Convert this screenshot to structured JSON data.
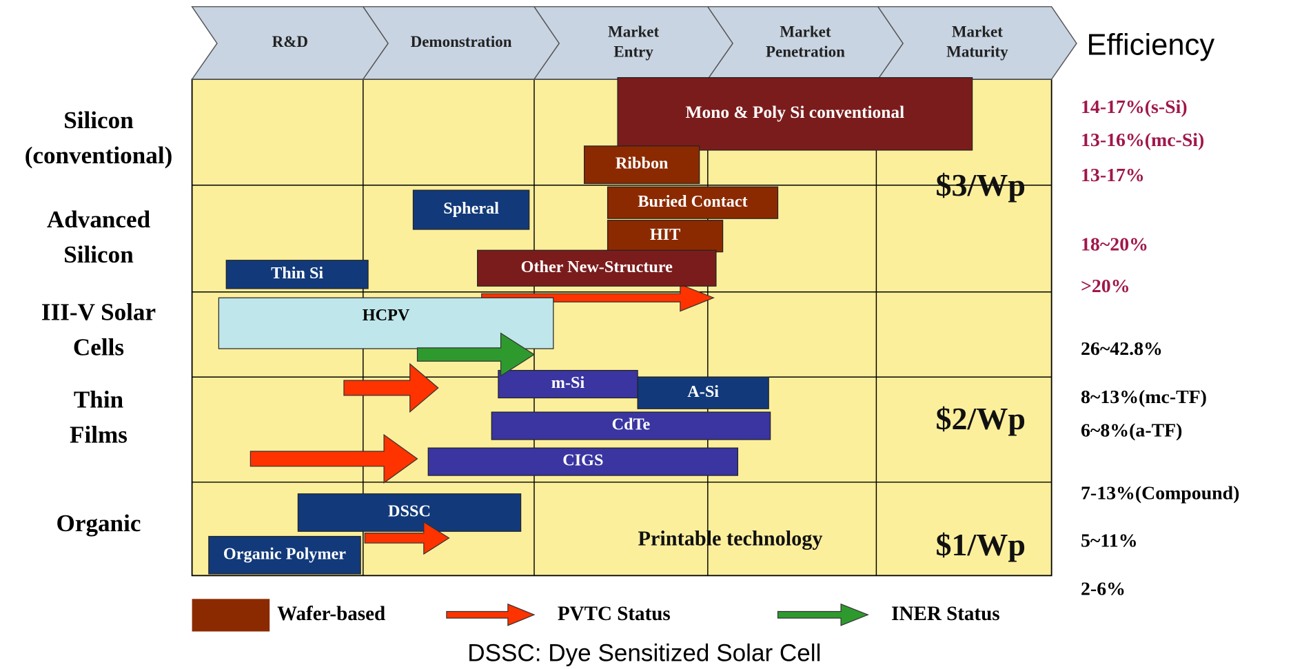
{
  "stages": [
    "R&D",
    "Demonstration",
    "Market Entry",
    "Market Penetration",
    "Market Maturity"
  ],
  "efficiency_heading": "Efficiency",
  "rows": [
    "Silicon (conventional)",
    "Advanced Silicon",
    "III-V Solar Cells",
    "Thin Films",
    "Organic"
  ],
  "bars": [
    {
      "label": "Mono & Poly Si conventional",
      "color": "#7b1c1c"
    },
    {
      "label": "Ribbon",
      "color": "#8b2a00"
    },
    {
      "label": "Buried Contact",
      "color": "#8b2a00"
    },
    {
      "label": "HIT",
      "color": "#8b2a00"
    },
    {
      "label": "Other New-Structure",
      "color": "#7b1c1c"
    },
    {
      "label": "Spheral",
      "color": "#123a7a"
    },
    {
      "label": "Thin Si",
      "color": "#123a7a"
    },
    {
      "label": "HCPV",
      "color": "#bfe6ea"
    },
    {
      "label": "A-Si",
      "color": "#123a7a"
    },
    {
      "label": "m-Si",
      "color": "#3a35a0"
    },
    {
      "label": "CdTe",
      "color": "#3a35a0"
    },
    {
      "label": "CIGS",
      "color": "#3a35a0"
    },
    {
      "label": "DSSC",
      "color": "#123a7a"
    },
    {
      "label": "Organic Polymer",
      "color": "#123a7a"
    }
  ],
  "prices": [
    "$3/Wp",
    "$2/Wp",
    "$1/Wp"
  ],
  "printable": "Printable technology",
  "efficiencies": [
    {
      "text": "14-17%(s-Si)",
      "color": "#a0174a"
    },
    {
      "text": "13-16%(mc-Si)",
      "color": "#a0174a"
    },
    {
      "text": "13-17%",
      "color": "#a0174a"
    },
    {
      "text": "18~20%",
      "color": "#a0174a"
    },
    {
      "text": ">20%",
      "color": "#a0174a"
    },
    {
      "text": "26~42.8%",
      "color": "#000000"
    },
    {
      "text": "8~13%(mc-TF)",
      "color": "#000000"
    },
    {
      "text": "6~8%(a-TF)",
      "color": "#000000"
    },
    {
      "text": "7-13%(Compound)",
      "color": "#000000"
    },
    {
      "text": "5~11%",
      "color": "#000000"
    },
    {
      "text": "2-6%",
      "color": "#000000"
    }
  ],
  "legend": [
    "Wafer-based",
    "PVTC Status",
    "INER Status"
  ],
  "footnote": "DSSC: Dye Sensitized Solar Cell"
}
